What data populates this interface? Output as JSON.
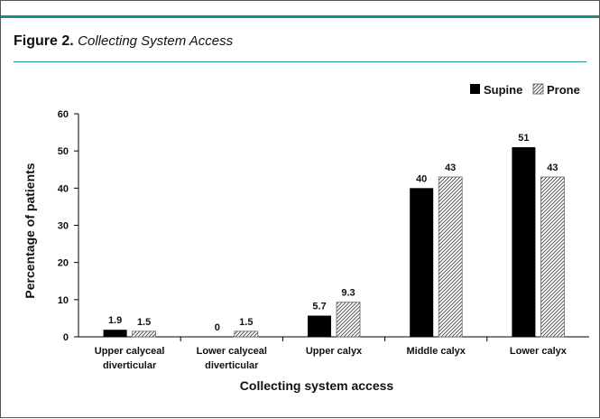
{
  "figure": {
    "label": "Figure 2.",
    "title": "Collecting System Access",
    "accent_color": "#1a8f8a"
  },
  "chart_data": {
    "type": "bar",
    "title": "",
    "xlabel": "Collecting system access",
    "ylabel": "Percentage of patients",
    "ylim": [
      0,
      60
    ],
    "yticks": [
      0,
      10,
      20,
      30,
      40,
      50,
      60
    ],
    "grid": false,
    "legend_position": "top-right",
    "categories": [
      [
        "Upper calyceal",
        "diverticular"
      ],
      [
        "Lower calyceal",
        "diverticular"
      ],
      [
        "Upper calyx"
      ],
      [
        "Middle calyx"
      ],
      [
        "Lower calyx"
      ]
    ],
    "series": [
      {
        "name": "Supine",
        "values": [
          1.9,
          0,
          5.7,
          40,
          51
        ],
        "labels": [
          "1.9",
          "0",
          "5.7",
          "40",
          "51"
        ],
        "fill": "solid",
        "color": "#000000"
      },
      {
        "name": "Prone",
        "values": [
          1.5,
          1.5,
          9.3,
          43,
          43
        ],
        "labels": [
          "1.5",
          "1.5",
          "9.3",
          "43",
          "43"
        ],
        "fill": "hatched",
        "color": "#555555"
      }
    ]
  }
}
